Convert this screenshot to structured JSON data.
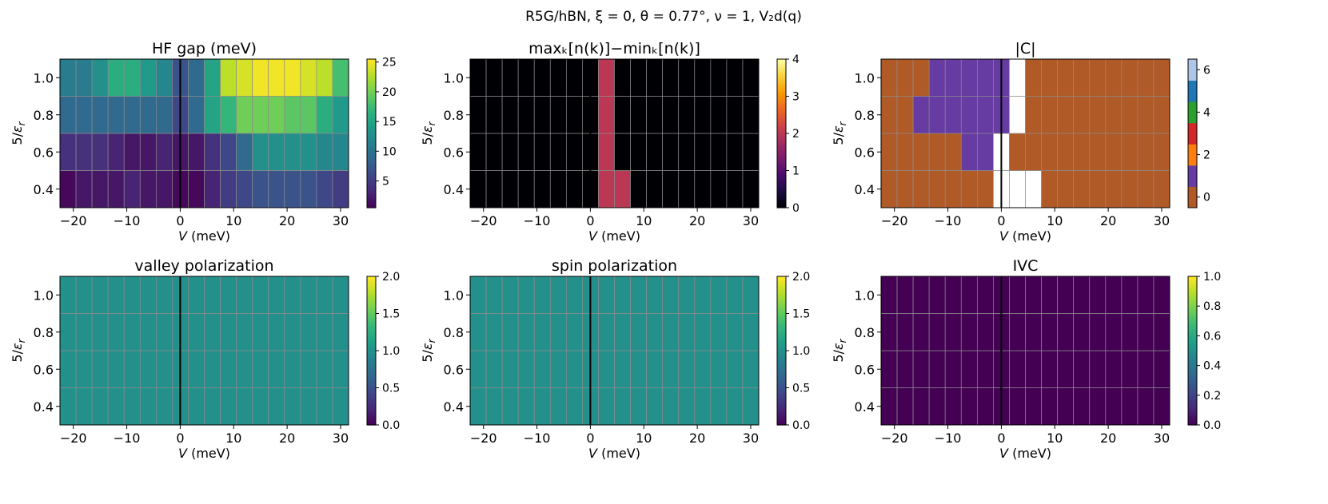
{
  "suptitle": "R5G/hBN,  ξ = 0,  θ = 0.77°,  ν = 1,  V₂d(q)",
  "chart_data": [
    {
      "type": "heatmap",
      "title": "HF gap (meV)",
      "xlabel": "V (meV)",
      "ylabel": "5/εr",
      "x": [
        -21,
        -18,
        -15,
        -12,
        -9,
        -6,
        -3,
        0,
        3,
        6,
        9,
        12,
        15,
        18,
        21,
        24,
        27,
        30
      ],
      "y": [
        0.4,
        0.6,
        0.8,
        1.0
      ],
      "xlim": [
        -22.5,
        31.5
      ],
      "ylim": [
        0.3,
        1.1
      ],
      "xticks": [
        -20,
        -10,
        0,
        10,
        20,
        30
      ],
      "yticks": [
        0.4,
        0.6,
        0.8,
        1.0
      ],
      "colormap": "viridis",
      "clim": [
        0.5,
        25.5
      ],
      "colorbar_ticks": [
        5,
        10,
        15,
        20,
        25
      ],
      "z": [
        [
          1,
          2,
          2,
          2,
          3,
          2,
          2,
          1,
          1,
          3,
          5,
          6,
          7,
          7,
          7,
          7,
          6,
          5
        ],
        [
          4,
          4,
          4,
          3,
          2,
          2,
          3,
          2,
          2,
          4,
          6,
          9,
          13,
          13,
          13,
          13,
          12,
          12
        ],
        [
          9,
          9,
          9,
          9,
          9,
          9,
          9,
          6,
          9,
          15,
          17,
          20,
          20,
          20,
          19,
          19,
          16,
          14
        ],
        [
          11,
          11,
          13,
          16,
          16,
          14,
          12,
          7,
          9,
          15,
          23,
          24,
          25,
          25,
          25,
          24,
          23,
          18
        ]
      ]
    },
    {
      "type": "heatmap",
      "title": "maxₖ[n(k)]−minₖ[n(k)]",
      "xlabel": "V (meV)",
      "ylabel": "5/εr",
      "x": [
        -21,
        -18,
        -15,
        -12,
        -9,
        -6,
        -3,
        0,
        3,
        6,
        9,
        12,
        15,
        18,
        21,
        24,
        27,
        30
      ],
      "y": [
        0.4,
        0.6,
        0.8,
        1.0
      ],
      "xlim": [
        -22.5,
        31.5
      ],
      "ylim": [
        0.3,
        1.1
      ],
      "xticks": [
        -20,
        -10,
        0,
        10,
        20,
        30
      ],
      "yticks": [
        0.4,
        0.6,
        0.8,
        1.0
      ],
      "colormap": "inferno",
      "clim": [
        0,
        4
      ],
      "colorbar_ticks": [
        0,
        1,
        2,
        3,
        4
      ],
      "z": [
        [
          0,
          0,
          0,
          0,
          0,
          0,
          0,
          0,
          2,
          2,
          0,
          0,
          0,
          0,
          0,
          0,
          0,
          0
        ],
        [
          0,
          0,
          0,
          0,
          0,
          0,
          0,
          0,
          2,
          0,
          0,
          0,
          0,
          0,
          0,
          0,
          0,
          0
        ],
        [
          0,
          0,
          0,
          0,
          0,
          0,
          0,
          0,
          2,
          0,
          0,
          0,
          0,
          0,
          0,
          0,
          0,
          0
        ],
        [
          0,
          0,
          0,
          0,
          0,
          0,
          0,
          0,
          2,
          0,
          0,
          0,
          0,
          0,
          0,
          0,
          0,
          0
        ]
      ]
    },
    {
      "type": "heatmap",
      "title": "|C|",
      "xlabel": "V (meV)",
      "ylabel": "5/εr",
      "x": [
        -21,
        -18,
        -15,
        -12,
        -9,
        -6,
        -3,
        0,
        3,
        6,
        9,
        12,
        15,
        18,
        21,
        24,
        27,
        30
      ],
      "y": [
        0.4,
        0.6,
        0.8,
        1.0
      ],
      "xlim": [
        -22.5,
        31.5
      ],
      "ylim": [
        0.3,
        1.1
      ],
      "xticks": [
        -20,
        -10,
        0,
        10,
        20,
        30
      ],
      "yticks": [
        0.4,
        0.6,
        0.8,
        1.0
      ],
      "colormap": "tab20 (discrete)",
      "clim": [
        -0.5,
        6.5
      ],
      "colorbar_ticks": [
        0,
        2,
        4,
        6
      ],
      "colorbar_colors": [
        "#b05a27",
        "#663ba2",
        "#ff7f0e",
        "#d62728",
        "#2ca02c",
        "#1f77b4",
        "#aec7e8"
      ],
      "missing_color": "#ffffff",
      "z": [
        [
          0,
          0,
          0,
          0,
          0,
          0,
          0,
          null,
          null,
          null,
          0,
          0,
          0,
          0,
          0,
          0,
          0,
          0
        ],
        [
          0,
          0,
          0,
          0,
          0,
          1,
          1,
          null,
          0,
          0,
          0,
          0,
          0,
          0,
          0,
          0,
          0,
          0
        ],
        [
          0,
          0,
          1,
          1,
          1,
          1,
          1,
          1,
          null,
          0,
          0,
          0,
          0,
          0,
          0,
          0,
          0,
          0
        ],
        [
          0,
          0,
          0,
          1,
          1,
          1,
          1,
          1,
          null,
          0,
          0,
          0,
          0,
          0,
          0,
          0,
          0,
          0
        ]
      ]
    },
    {
      "type": "heatmap",
      "title": "valley polarization",
      "xlabel": "V (meV)",
      "ylabel": "5/εr",
      "x": [
        -21,
        -18,
        -15,
        -12,
        -9,
        -6,
        -3,
        0,
        3,
        6,
        9,
        12,
        15,
        18,
        21,
        24,
        27,
        30
      ],
      "y": [
        0.4,
        0.6,
        0.8,
        1.0
      ],
      "xlim": [
        -22.5,
        31.5
      ],
      "ylim": [
        0.3,
        1.1
      ],
      "xticks": [
        -20,
        -10,
        0,
        10,
        20,
        30
      ],
      "yticks": [
        0.4,
        0.6,
        0.8,
        1.0
      ],
      "colormap": "viridis",
      "clim": [
        0,
        2
      ],
      "colorbar_ticks": [
        0.0,
        0.5,
        1.0,
        1.5,
        2.0
      ],
      "uniform_value": 1.0
    },
    {
      "type": "heatmap",
      "title": "spin polarization",
      "xlabel": "V (meV)",
      "ylabel": "5/εr",
      "x": [
        -21,
        -18,
        -15,
        -12,
        -9,
        -6,
        -3,
        0,
        3,
        6,
        9,
        12,
        15,
        18,
        21,
        24,
        27,
        30
      ],
      "y": [
        0.4,
        0.6,
        0.8,
        1.0
      ],
      "xlim": [
        -22.5,
        31.5
      ],
      "ylim": [
        0.3,
        1.1
      ],
      "xticks": [
        -20,
        -10,
        0,
        10,
        20,
        30
      ],
      "yticks": [
        0.4,
        0.6,
        0.8,
        1.0
      ],
      "colormap": "viridis",
      "clim": [
        0,
        2
      ],
      "colorbar_ticks": [
        0.0,
        0.5,
        1.0,
        1.5,
        2.0
      ],
      "uniform_value": 1.0
    },
    {
      "type": "heatmap",
      "title": "IVC",
      "xlabel": "V (meV)",
      "ylabel": "5/εr",
      "x": [
        -21,
        -18,
        -15,
        -12,
        -9,
        -6,
        -3,
        0,
        3,
        6,
        9,
        12,
        15,
        18,
        21,
        24,
        27,
        30
      ],
      "y": [
        0.4,
        0.6,
        0.8,
        1.0
      ],
      "xlim": [
        -22.5,
        31.5
      ],
      "ylim": [
        0.3,
        1.1
      ],
      "xticks": [
        -20,
        -10,
        0,
        10,
        20,
        30
      ],
      "yticks": [
        0.4,
        0.6,
        0.8,
        1.0
      ],
      "colormap": "viridis",
      "clim": [
        0,
        1
      ],
      "colorbar_ticks": [
        0.0,
        0.2,
        0.4,
        0.6,
        0.8,
        1.0
      ],
      "uniform_value": 0.0
    }
  ]
}
